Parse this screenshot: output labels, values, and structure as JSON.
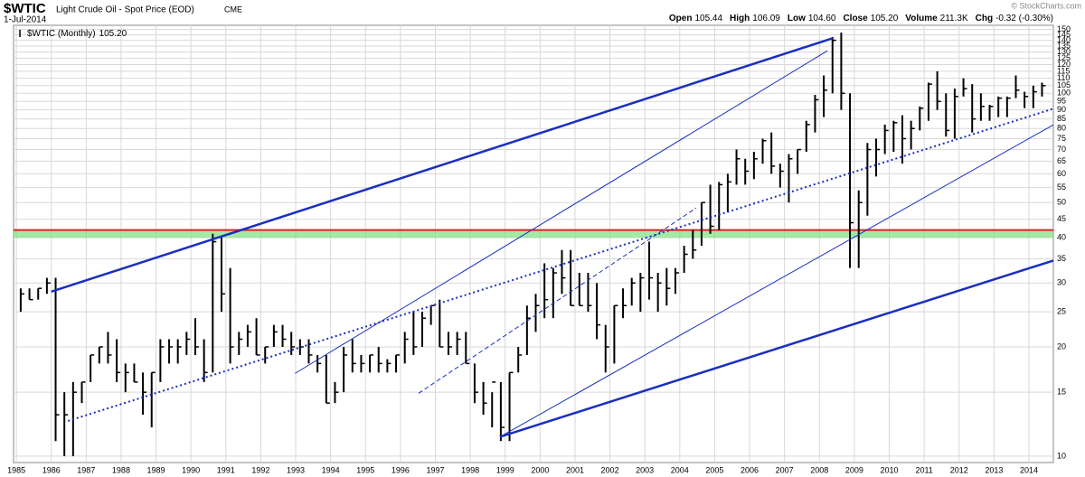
{
  "chart_data": {
    "type": "ohlc",
    "symbol": "$WTIC",
    "title": "Light Crude Oil - Spot Price (EOD)",
    "exchange": "CME",
    "date": "1-Jul-2014",
    "watermark": "© StockCharts.com",
    "quote": [
      {
        "label": "Open",
        "value": "105.44"
      },
      {
        "label": "High",
        "value": "106.09"
      },
      {
        "label": "Low",
        "value": "104.60"
      },
      {
        "label": "Close",
        "value": "105.20"
      },
      {
        "label": "Volume",
        "value": "211.3K"
      },
      {
        "label": "Chg",
        "value": "-0.32 (-0.30%)"
      }
    ],
    "last_value": "105.20",
    "log_scale": true,
    "grid": true,
    "xlim": [
      1984.92,
      2014.7
    ],
    "ylim": [
      9.6,
      154
    ],
    "xticks": [
      1985,
      1986,
      1987,
      1988,
      1989,
      1990,
      1991,
      1992,
      1993,
      1994,
      1995,
      1996,
      1997,
      1998,
      1999,
      2000,
      2001,
      2002,
      2003,
      2004,
      2005,
      2006,
      2007,
      2008,
      2009,
      2010,
      2011,
      2012,
      2013,
      2014
    ],
    "yticks": [
      10,
      15,
      20,
      25,
      30,
      35,
      40,
      45,
      50,
      55,
      60,
      65,
      70,
      75,
      80,
      85,
      90,
      95,
      100,
      105,
      110,
      115,
      120,
      125,
      130,
      135,
      140,
      145,
      150
    ],
    "x": [
      1985.125,
      1985.375,
      1985.625,
      1985.875,
      1986.125,
      1986.375,
      1986.625,
      1986.875,
      1987.125,
      1987.375,
      1987.625,
      1987.875,
      1988.125,
      1988.375,
      1988.625,
      1988.875,
      1989.125,
      1989.375,
      1989.625,
      1989.875,
      1990.125,
      1990.375,
      1990.625,
      1990.875,
      1991.125,
      1991.375,
      1991.625,
      1991.875,
      1992.125,
      1992.375,
      1992.625,
      1992.875,
      1993.125,
      1993.375,
      1993.625,
      1993.875,
      1994.125,
      1994.375,
      1994.625,
      1994.875,
      1995.125,
      1995.375,
      1995.625,
      1995.875,
      1996.125,
      1996.375,
      1996.625,
      1996.875,
      1997.125,
      1997.375,
      1997.625,
      1997.875,
      1998.125,
      1998.375,
      1998.625,
      1998.875,
      1999.125,
      1999.375,
      1999.625,
      1999.875,
      2000.125,
      2000.375,
      2000.625,
      2000.875,
      2001.125,
      2001.375,
      2001.625,
      2001.875,
      2002.125,
      2002.375,
      2002.625,
      2002.875,
      2003.125,
      2003.375,
      2003.625,
      2003.875,
      2004.125,
      2004.375,
      2004.625,
      2004.875,
      2005.125,
      2005.375,
      2005.625,
      2005.875,
      2006.125,
      2006.375,
      2006.625,
      2006.875,
      2007.125,
      2007.375,
      2007.625,
      2007.875,
      2008.125,
      2008.375,
      2008.625,
      2008.875,
      2009.125,
      2009.375,
      2009.625,
      2009.875,
      2010.125,
      2010.375,
      2010.625,
      2010.875,
      2011.125,
      2011.375,
      2011.625,
      2011.875,
      2012.125,
      2012.375,
      2012.625,
      2012.875,
      2013.125,
      2013.375,
      2013.625,
      2013.875,
      2014.125,
      2014.375
    ],
    "series": [
      {
        "name": "$WTIC (Monthly)",
        "color": "#000000",
        "high": [
          29,
          29,
          29,
          31,
          31,
          15,
          16,
          16,
          19,
          20,
          22,
          21,
          18,
          18,
          17,
          17,
          21,
          21,
          21,
          22,
          24,
          21,
          41,
          40,
          33,
          22,
          23,
          24,
          20,
          23,
          23,
          22,
          21,
          21,
          19,
          19,
          16,
          20,
          21,
          19,
          19,
          20,
          18.5,
          19,
          22,
          25,
          25,
          26,
          27,
          22,
          22,
          22,
          18,
          16,
          15,
          16,
          17,
          20,
          26,
          28,
          34,
          33,
          37,
          37,
          32,
          32,
          30,
          23,
          26,
          29,
          31,
          32,
          39,
          32,
          33,
          33,
          38,
          42,
          50,
          56,
          57,
          60,
          70,
          66,
          69,
          75,
          78,
          64,
          68,
          70,
          84,
          99,
          112,
          143,
          147,
          100,
          54,
          73,
          75,
          82,
          84,
          87,
          84,
          92,
          107,
          115,
          100,
          103,
          110,
          106,
          100,
          93,
          98,
          98,
          112,
          101,
          105,
          107
        ],
        "low": [
          25,
          27,
          27,
          28,
          11,
          10,
          10,
          14,
          16,
          18,
          18,
          16,
          15,
          16,
          13,
          12,
          16,
          18,
          18,
          19,
          19,
          16,
          17,
          25,
          18,
          19,
          20,
          19,
          18,
          20,
          20,
          19,
          19,
          18,
          17,
          14,
          14,
          15,
          17,
          17,
          17,
          17,
          17,
          17,
          18,
          19,
          20,
          23,
          20,
          19,
          19,
          18,
          14,
          13,
          12,
          11,
          11,
          17,
          19,
          22,
          24,
          24,
          28,
          26,
          26,
          25,
          21,
          17,
          18,
          24,
          26,
          25,
          27,
          25,
          26,
          28,
          32,
          35,
          38,
          41,
          42,
          47,
          56,
          56,
          58,
          64,
          60,
          55,
          50,
          60,
          69,
          78,
          86,
          100,
          90,
          33,
          33,
          46,
          59,
          68,
          69,
          64,
          70,
          79,
          84,
          90,
          76,
          75,
          98,
          78,
          84,
          84,
          86,
          86,
          97,
          91,
          91,
          98
        ],
        "close": [
          28,
          27,
          29,
          30,
          13,
          13,
          15,
          16,
          19,
          20,
          19,
          17,
          17,
          16,
          15,
          17,
          20,
          20,
          20,
          21,
          20,
          17,
          39,
          28,
          20,
          21,
          22,
          19,
          20,
          22,
          21,
          20,
          20,
          19,
          18,
          14,
          15,
          19,
          18,
          18,
          19,
          18,
          18,
          19,
          21,
          20,
          24,
          26,
          20,
          20,
          21,
          18,
          15,
          14,
          16,
          12,
          17,
          19,
          24,
          26,
          27,
          32,
          31,
          26,
          26,
          26,
          23,
          20,
          26,
          26,
          30,
          31,
          31,
          30,
          29,
          32,
          36,
          37,
          50,
          43,
          56,
          57,
          66,
          61,
          66,
          74,
          63,
          61,
          66,
          70,
          82,
          96,
          102,
          140,
          100,
          44,
          50,
          70,
          70,
          79,
          83,
          75,
          80,
          91,
          106,
          95,
          79,
          98,
          103,
          85,
          92,
          92,
          97,
          97,
          102,
          98,
          101,
          105
        ]
      }
    ],
    "bands": [
      {
        "from": 40,
        "to": 42,
        "color": "#7ee07e"
      }
    ],
    "hlines": [
      {
        "value": 42,
        "color": "#e02020"
      }
    ],
    "lines": [
      {
        "points": [
          [
            1986.0,
            28.4
          ],
          [
            2008.38,
            141.9
          ]
        ],
        "color": "#1a2fc0",
        "width": 2.5,
        "style": "solid"
      },
      {
        "points": [
          [
            1998.85,
            11.3
          ],
          [
            2014.7,
            34.6
          ]
        ],
        "color": "#1a2fc0",
        "width": 2.5,
        "style": "solid"
      },
      {
        "points": [
          [
            1992.98,
            16.9
          ],
          [
            2008.23,
            131
          ]
        ],
        "color": "#1a2fc0",
        "width": 1,
        "style": "solid"
      },
      {
        "points": [
          [
            1998.85,
            11.3
          ],
          [
            2014.7,
            81.9
          ]
        ],
        "color": "#1a2fc0",
        "width": 1,
        "style": "solid"
      },
      {
        "points": [
          [
            1986.48,
            12.5
          ],
          [
            2014.7,
            90.7
          ]
        ],
        "color": "#1a2fc0",
        "width": 2,
        "style": "dotted"
      },
      {
        "points": [
          [
            1996.52,
            14.9
          ],
          [
            2004.47,
            48.3
          ]
        ],
        "color": "#1a2fc0",
        "width": 1,
        "style": "dashed"
      }
    ]
  }
}
